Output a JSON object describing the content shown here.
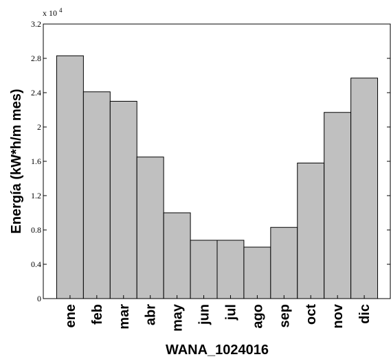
{
  "chart_data": {
    "type": "bar",
    "categories": [
      "ene",
      "feb",
      "mar",
      "abr",
      "may",
      "jun",
      "jul",
      "ago",
      "sep",
      "oct",
      "nov",
      "dic"
    ],
    "values": [
      28300,
      24100,
      23000,
      16500,
      10000,
      6800,
      6800,
      6000,
      8300,
      15800,
      21700,
      25700
    ],
    "xlabel": "WANA_1024016",
    "ylabel": "Energía (kW*h/m mes)",
    "ylim": [
      0,
      32000
    ],
    "yticks": [
      0,
      4000,
      8000,
      12000,
      16000,
      20000,
      24000,
      28000,
      32000
    ],
    "ytick_labels": [
      "0",
      "0.4",
      "0.8",
      "1.2",
      "1.6",
      "2",
      "2.4",
      "2.8",
      "3.2"
    ],
    "y_multiplier_base": "x 10",
    "y_multiplier_exponent": "4",
    "bar_color": "#c0c0c0",
    "edge_color": "#000000",
    "grid": false
  }
}
